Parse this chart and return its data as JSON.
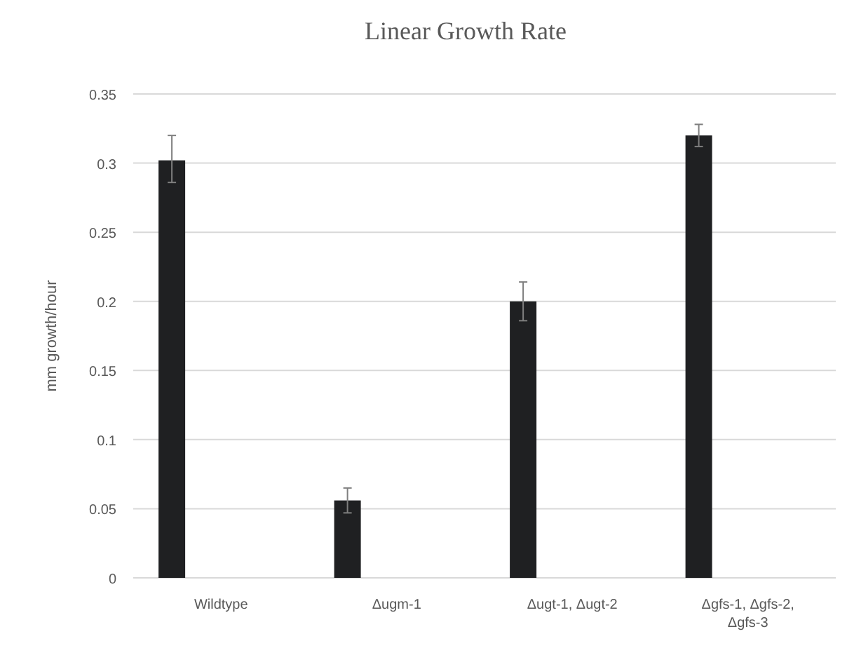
{
  "chart_data": {
    "type": "bar",
    "title": "Linear Growth Rate",
    "ylabel": "mm growth/hour",
    "categories": [
      "Wildtype",
      "Δugm-1",
      "Δugt-1, Δugt-2",
      "Δgfs-1, Δgfs-2, Δgfs-3"
    ],
    "values": [
      0.302,
      0.056,
      0.2,
      0.32
    ],
    "errors": [
      [
        0.286,
        0.32
      ],
      [
        0.047,
        0.065
      ],
      [
        0.186,
        0.214
      ],
      [
        0.312,
        0.328
      ]
    ],
    "color": "#1f2022",
    "ylim": [
      0,
      0.35
    ],
    "yticks": [
      0,
      0.05,
      0.1,
      0.15,
      0.2,
      0.25,
      0.3,
      0.35
    ],
    "grid": "y"
  }
}
